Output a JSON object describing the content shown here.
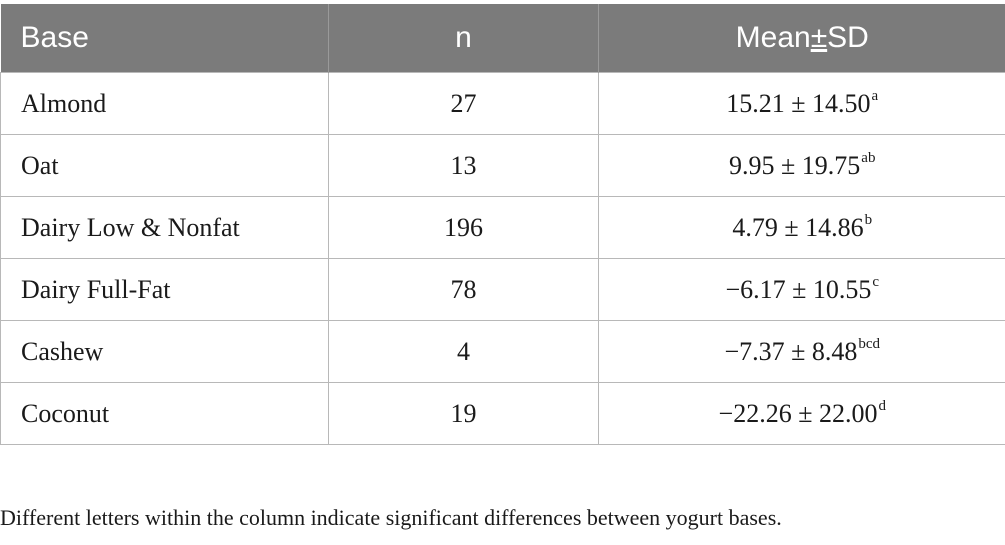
{
  "table": {
    "headers": {
      "base": "Base",
      "n": "n",
      "mean_prefix": "Mean",
      "mean_pm": "±",
      "mean_suffix": "SD"
    },
    "rows": [
      {
        "base": "Almond",
        "n": "27",
        "mean": "15.21 ± 14.50",
        "sup": "a"
      },
      {
        "base": "Oat",
        "n": "13",
        "mean": "9.95 ± 19.75",
        "sup": "ab"
      },
      {
        "base": "Dairy Low & Nonfat",
        "n": "196",
        "mean": "4.79 ± 14.86",
        "sup": "b"
      },
      {
        "base": "Dairy Full-Fat",
        "n": "78",
        "mean": "−6.17 ± 10.55",
        "sup": "c"
      },
      {
        "base": "Cashew",
        "n": "4",
        "mean": "−7.37 ± 8.48",
        "sup": "bcd"
      },
      {
        "base": "Coconut",
        "n": "19",
        "mean": "−22.26 ± 22.00",
        "sup": "d"
      }
    ]
  },
  "footnote": "Different letters within the column indicate significant differences between yogurt bases.",
  "colors": {
    "header_bg": "#7b7b7b",
    "header_text": "#ffffff",
    "grid": "#b8b8b8"
  }
}
